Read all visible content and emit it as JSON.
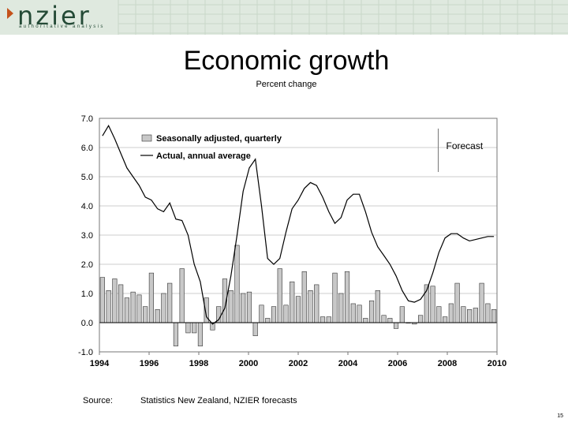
{
  "header": {
    "logo_text": "nzier",
    "tagline": "authoritative analysis",
    "colors": {
      "band": "#dfe9df",
      "logo": "#244a36",
      "mark": "#c4521b"
    }
  },
  "slide": {
    "title": "Economic growth",
    "subtitle": "Percent change",
    "source_label": "Source:",
    "source_text": "Statistics New Zealand, NZIER forecasts",
    "page_number": "15"
  },
  "chart_data": {
    "type": "bar",
    "title": "Economic growth",
    "subtitle": "Percent change",
    "xlabel": "",
    "ylabel": "",
    "ylim": [
      -1.0,
      7.0
    ],
    "xlim": [
      1994,
      2010
    ],
    "yticks": [
      "7.0",
      "6.0",
      "5.0",
      "4.0",
      "3.0",
      "2.0",
      "1.0",
      "0.0",
      "-1.0"
    ],
    "xticks": [
      "1994",
      "1996",
      "1998",
      "2000",
      "2002",
      "2004",
      "2006",
      "2008",
      "2010"
    ],
    "grid": true,
    "legend": "top-left",
    "forecast_label": "Forecast",
    "forecast_start": "2007",
    "series": [
      {
        "name": "Seasonally adjusted, quarterly",
        "type": "bar",
        "color": "#c8c8c8",
        "frequency": "quarterly",
        "start": "1994 Q1",
        "values": [
          1.55,
          1.1,
          1.5,
          1.3,
          0.85,
          1.05,
          0.95,
          0.55,
          1.7,
          0.45,
          1.0,
          1.35,
          -0.8,
          1.85,
          -0.35,
          -0.35,
          -0.8,
          0.85,
          -0.25,
          0.55,
          1.5,
          1.1,
          2.65,
          1.0,
          1.05,
          -0.45,
          0.6,
          0.15,
          0.55,
          1.85,
          0.6,
          1.4,
          0.9,
          1.75,
          1.1,
          1.3,
          0.2,
          0.2,
          1.7,
          1.0,
          1.75,
          0.65,
          0.6,
          0.15,
          0.75,
          1.1,
          0.25,
          0.15,
          -0.2,
          0.55,
          0.0,
          -0.05,
          0.25,
          1.3,
          1.25,
          0.55,
          0.2,
          0.65,
          1.35,
          0.55,
          0.45,
          0.5,
          1.35,
          0.65,
          0.45
        ]
      },
      {
        "name": "Actual, annual average",
        "type": "line",
        "color": "#000000",
        "frequency": "quarterly",
        "start": "1994 Q1",
        "values": [
          6.4,
          6.75,
          6.3,
          5.8,
          5.3,
          5.0,
          4.7,
          4.3,
          4.2,
          3.9,
          3.8,
          4.1,
          3.55,
          3.5,
          3.0,
          2.0,
          1.4,
          0.2,
          -0.05,
          0.1,
          0.5,
          1.6,
          3.0,
          4.5,
          5.3,
          5.6,
          4.0,
          2.2,
          2.0,
          2.2,
          3.1,
          3.9,
          4.2,
          4.6,
          4.8,
          4.7,
          4.3,
          3.8,
          3.4,
          3.6,
          4.2,
          4.4,
          4.4,
          3.8,
          3.1,
          2.6,
          2.3,
          2.0,
          1.6,
          1.1,
          0.75,
          0.7,
          0.8,
          1.1,
          1.7,
          2.4,
          2.9,
          3.05,
          3.05,
          2.9,
          2.8,
          2.85,
          2.9,
          2.95,
          2.95
        ]
      }
    ]
  }
}
